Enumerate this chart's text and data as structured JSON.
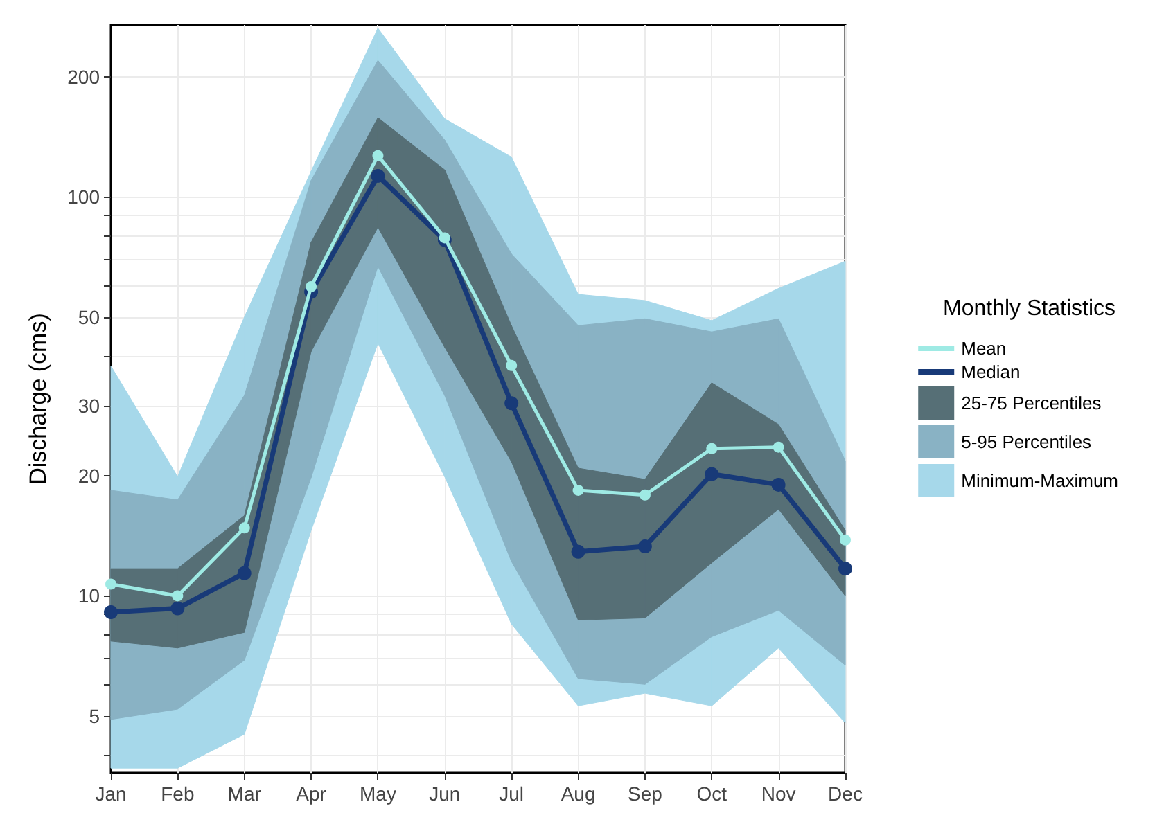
{
  "chart_data": {
    "type": "line",
    "ylabel": "Discharge (cms)",
    "legend_title": "Monthly Statistics",
    "legend": "right",
    "grid": true,
    "log": "y",
    "line_style": "solid",
    "categories": [
      "Jan",
      "Feb",
      "Mar",
      "Apr",
      "May",
      "Jun",
      "Jul",
      "Aug",
      "Sep",
      "Oct",
      "Nov",
      "Dec"
    ],
    "ylim": [
      3.6,
      270
    ],
    "yticks": [
      {
        "value": 4,
        "label": null
      },
      5,
      {
        "value": 6,
        "label": null
      },
      {
        "value": 7,
        "label": null
      },
      {
        "value": 8,
        "label": null
      },
      {
        "value": 9,
        "label": null
      },
      10,
      20,
      30,
      {
        "value": 40,
        "label": null
      },
      50,
      {
        "value": 60,
        "label": null
      },
      {
        "value": 70,
        "label": null
      },
      {
        "value": 80,
        "label": null
      },
      {
        "value": 90,
        "label": null
      },
      100,
      200
    ],
    "series": [
      {
        "name": "Mean",
        "marker": "circle",
        "color": "#9eeae4",
        "values": [
          10.7,
          10,
          14.8,
          59.6,
          127,
          79,
          37.8,
          18.4,
          17.9,
          23.4,
          23.6,
          13.8
        ]
      },
      {
        "name": "Median",
        "marker": "circle",
        "color": "#183a78",
        "values": [
          9.1,
          9.3,
          11.4,
          57.8,
          113,
          78,
          30.4,
          12.9,
          13.3,
          20.2,
          19,
          11.7
        ]
      },
      {
        "name": "25-75 Percentiles",
        "type": "area",
        "color": "#566f76",
        "values": [
          null,
          null,
          null,
          null,
          null,
          null,
          null,
          null,
          null,
          null,
          null,
          null
        ],
        "lower": [
          7.7,
          7.4,
          8.1,
          41,
          84,
          42,
          21.7,
          8.7,
          8.8,
          12.1,
          16.5,
          10
        ],
        "upper": [
          11.7,
          11.7,
          15.9,
          77,
          158,
          117,
          47.6,
          20.9,
          19.6,
          34.2,
          26.9,
          14.6
        ]
      },
      {
        "name": "5-95 Percentiles",
        "type": "area",
        "color": "#89b2c4",
        "values": [
          null,
          null,
          null,
          null,
          null,
          null,
          null,
          null,
          null,
          null,
          null,
          null
        ],
        "lower": [
          4.9,
          5.2,
          6.9,
          19.8,
          67,
          31.8,
          12.2,
          6.2,
          6,
          7.9,
          9.2,
          6.7
        ],
        "upper": [
          18.4,
          17.4,
          31.8,
          110,
          220,
          139,
          72,
          47.6,
          49.5,
          45.9,
          49.5,
          21.8
        ]
      },
      {
        "name": "Minimum-Maximum",
        "type": "area",
        "color": "#a6d8ea",
        "values": [
          null,
          null,
          null,
          null,
          null,
          null,
          null,
          null,
          null,
          null,
          null,
          null
        ],
        "lower": [
          3.7,
          3.7,
          4.5,
          14.6,
          43,
          19.9,
          8.5,
          5.3,
          5.7,
          5.3,
          7.4,
          4.8
        ],
        "upper": [
          37.7,
          19.9,
          50,
          116,
          265,
          157,
          126,
          57,
          55,
          49,
          59,
          69
        ]
      }
    ]
  }
}
